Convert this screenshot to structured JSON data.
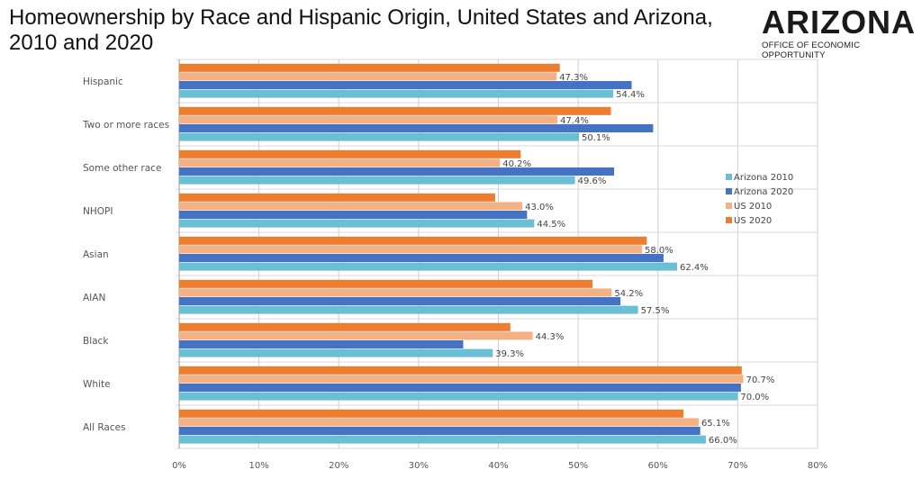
{
  "title": "Homeownership by Race and Hispanic Origin, United States and Arizona, 2010 and 2020",
  "logo": {
    "word": "ARIZONA",
    "subtitle": "OFFICE OF ECONOMIC OPPORTUNITY"
  },
  "colors": {
    "az2010": "#6ABFD4",
    "az2020": "#4472C4",
    "us2010": "#F4B183",
    "us2020": "#ED7D31"
  },
  "chart_data": {
    "type": "bar",
    "orientation": "horizontal",
    "categories": [
      "Hispanic",
      "Two or more races",
      "Some other race",
      "NHOPI",
      "Asian",
      "AIAN",
      "Black",
      "White",
      "All Races"
    ],
    "series": [
      {
        "name": "Arizona 2010",
        "values": [
          54.4,
          50.1,
          49.6,
          44.5,
          62.4,
          57.5,
          39.3,
          70.0,
          66.0
        ]
      },
      {
        "name": "Arizona 2020",
        "values": [
          56.7,
          59.4,
          54.5,
          43.6,
          60.7,
          55.3,
          35.6,
          70.4,
          65.3
        ]
      },
      {
        "name": "US 2010",
        "values": [
          47.3,
          47.4,
          40.2,
          43.0,
          58.0,
          54.2,
          44.3,
          70.7,
          65.1
        ]
      },
      {
        "name": "US 2020",
        "values": [
          47.7,
          54.1,
          42.8,
          39.6,
          58.6,
          51.8,
          41.5,
          70.5,
          63.2
        ]
      }
    ],
    "data_labels": [
      {
        "category": "Hispanic",
        "series": "US 2010",
        "text": "47.3%"
      },
      {
        "category": "Hispanic",
        "series": "Arizona 2010",
        "text": "54.4%"
      },
      {
        "category": "Two or more races",
        "series": "US 2010",
        "text": "47.4%"
      },
      {
        "category": "Two or more races",
        "series": "Arizona 2010",
        "text": "50.1%"
      },
      {
        "category": "Some other race",
        "series": "US 2010",
        "text": "40.2%"
      },
      {
        "category": "Some other race",
        "series": "Arizona 2010",
        "text": "49.6%"
      },
      {
        "category": "NHOPI",
        "series": "US 2010",
        "text": "43.0%"
      },
      {
        "category": "NHOPI",
        "series": "Arizona 2010",
        "text": "44.5%"
      },
      {
        "category": "Asian",
        "series": "US 2010",
        "text": "58.0%"
      },
      {
        "category": "Asian",
        "series": "Arizona 2010",
        "text": "62.4%"
      },
      {
        "category": "AIAN",
        "series": "US 2010",
        "text": "54.2%"
      },
      {
        "category": "AIAN",
        "series": "Arizona 2010",
        "text": "57.5%"
      },
      {
        "category": "Black",
        "series": "US 2010",
        "text": "44.3%"
      },
      {
        "category": "Black",
        "series": "Arizona 2010",
        "text": "39.3%"
      },
      {
        "category": "White",
        "series": "US 2010",
        "text": "70.7%"
      },
      {
        "category": "White",
        "series": "Arizona 2010",
        "text": "70.0%"
      },
      {
        "category": "All Races",
        "series": "US 2010",
        "text": "65.1%"
      },
      {
        "category": "All Races",
        "series": "Arizona 2010",
        "text": "66.0%"
      }
    ],
    "x_ticks": [
      "0%",
      "10%",
      "20%",
      "30%",
      "40%",
      "50%",
      "60%",
      "70%",
      "80%"
    ],
    "xlim": [
      0,
      80
    ],
    "grid": true,
    "legend_position": "right",
    "legend_order": [
      "Arizona 2010",
      "Arizona 2020",
      "US 2010",
      "US 2020"
    ]
  }
}
